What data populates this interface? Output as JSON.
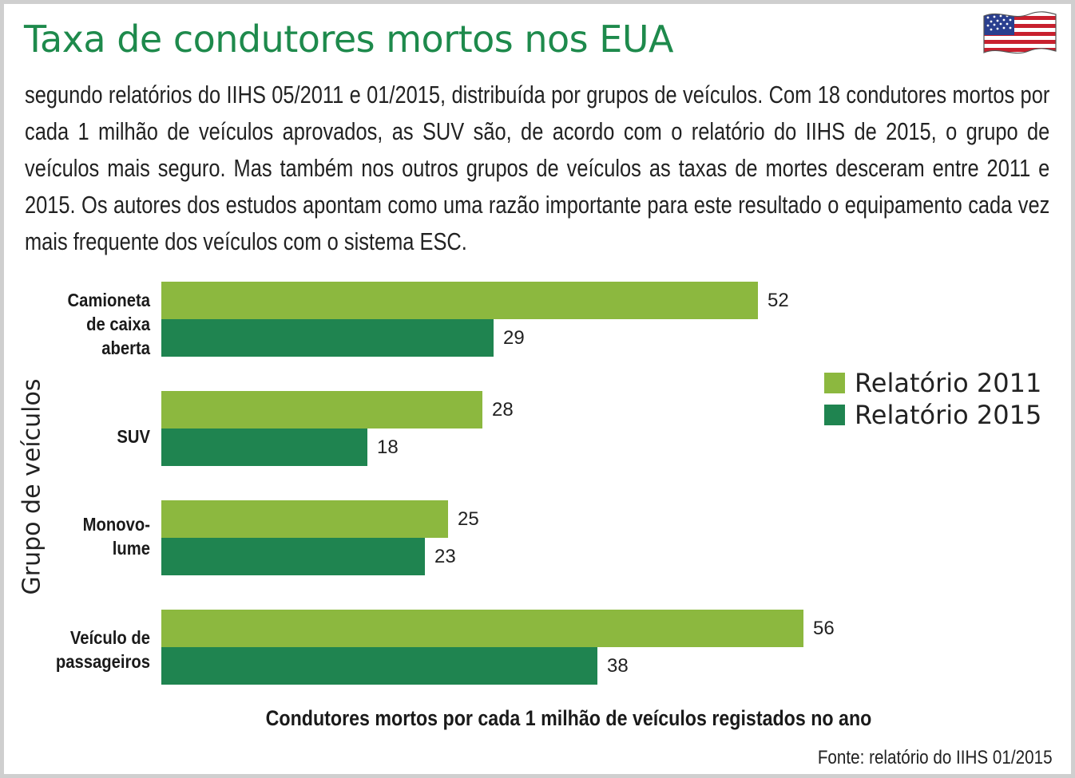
{
  "header": {
    "title": "Taxa de condutores mortos nos EUA",
    "subtitle": "segundo relatórios do IIHS 05/2011 e 01/2015, distribuída por grupos de veículos. Com 18 condutores mortos por cada 1 milhão de veículos aprovados, as SUV são, de acordo com o relatório do IIHS de 2015, o grupo de veículos mais seguro. Mas também nos outros grupos de veículos as taxas de mortes desceram entre 2011 e 2015. Os autores dos estudos apontam como uma razão importante para este resultado o equipamento cada vez mais frequente dos veículos com o sistema ESC.",
    "flag_icon": "us-flag-icon"
  },
  "chart_data": {
    "type": "bar",
    "orientation": "horizontal",
    "categories": [
      "Camioneta\nde caixa\naberta",
      "SUV",
      "Monovo-\nlume",
      "Veículo de\npassageiros"
    ],
    "series": [
      {
        "name": "Relatório 2011",
        "color": "#8cb83f",
        "values": [
          52,
          28,
          25,
          56
        ]
      },
      {
        "name": "Relatório 2015",
        "color": "#1f8450",
        "values": [
          29,
          18,
          23,
          38
        ]
      }
    ],
    "xlabel": "Condutores mortos por cada 1 milhão de veículos registados no ano",
    "ylabel": "Grupo de veículos",
    "xlim": [
      0,
      60
    ],
    "grid": false,
    "legend_position": "right"
  },
  "footer": {
    "source": "Fonte: relatório do IIHS 01/2015"
  }
}
